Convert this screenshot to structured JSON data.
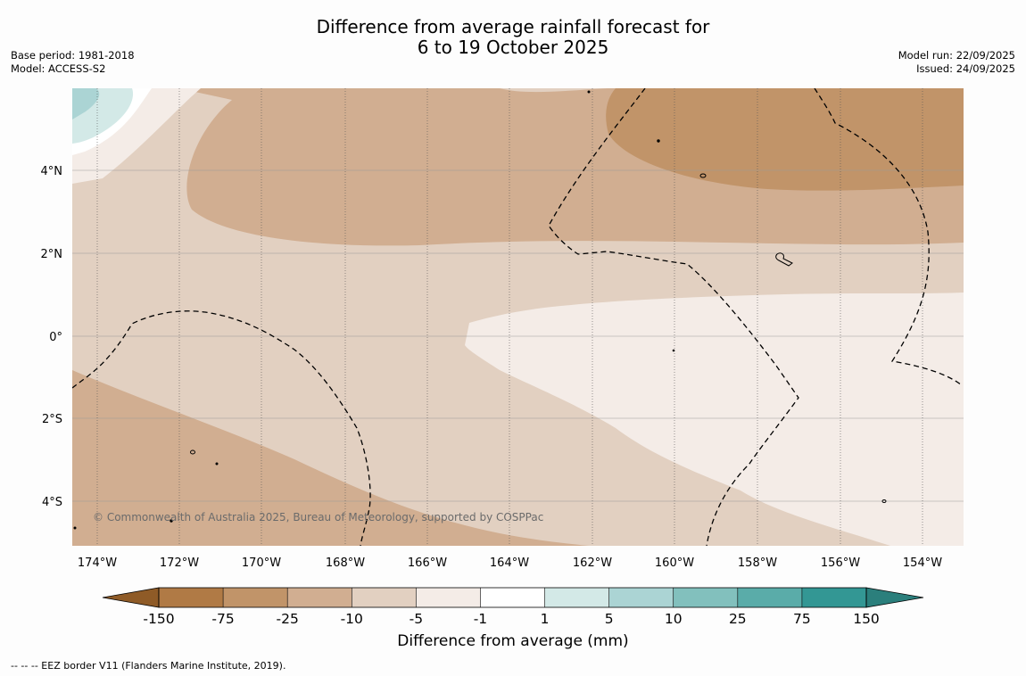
{
  "title": {
    "line1": "Difference from average rainfall forecast for",
    "line2": "6 to 19 October 2025"
  },
  "meta": {
    "base_period": "Base period: 1981-2018",
    "model": "Model: ACCESS-S2",
    "model_run": "Model run: 22/09/2025",
    "issued": "Issued: 24/09/2025"
  },
  "map": {
    "copyright": "© Commonwealth of Australia 2025, Bureau of Meteorology, supported by COSPPac",
    "lat_labels": [
      "4°N",
      "2°N",
      "0°",
      "2°S",
      "4°S"
    ],
    "lon_labels": [
      "174°W",
      "172°W",
      "170°W",
      "168°W",
      "166°W",
      "164°W",
      "162°W",
      "160°W",
      "158°W",
      "156°W",
      "154°W"
    ]
  },
  "colorbar": {
    "title": "Difference from average (mm)",
    "ticks": [
      "-150",
      "-75",
      "-25",
      "-10",
      "-5",
      "-1",
      "1",
      "5",
      "10",
      "25",
      "75",
      "150"
    ],
    "colors": {
      "below_150": "#8f5b27",
      "m150_m75": "#b07a45",
      "m75_m25": "#c19469",
      "m25_m10": "#d1ae91",
      "m10_m5": "#e2d0c1",
      "m5_m1": "#f4ece7",
      "m1_1": "#ffffff",
      "p1_5": "#d3e9e7",
      "p5_10": "#abd4d4",
      "p10_25": "#82c0bd",
      "p25_75": "#5aaca9",
      "p75_150": "#339794",
      "above_150": "#2b7f7c"
    }
  },
  "legend_note": "--  --  -- EEZ border V11 (Flanders Marine Institute, 2019)."
}
